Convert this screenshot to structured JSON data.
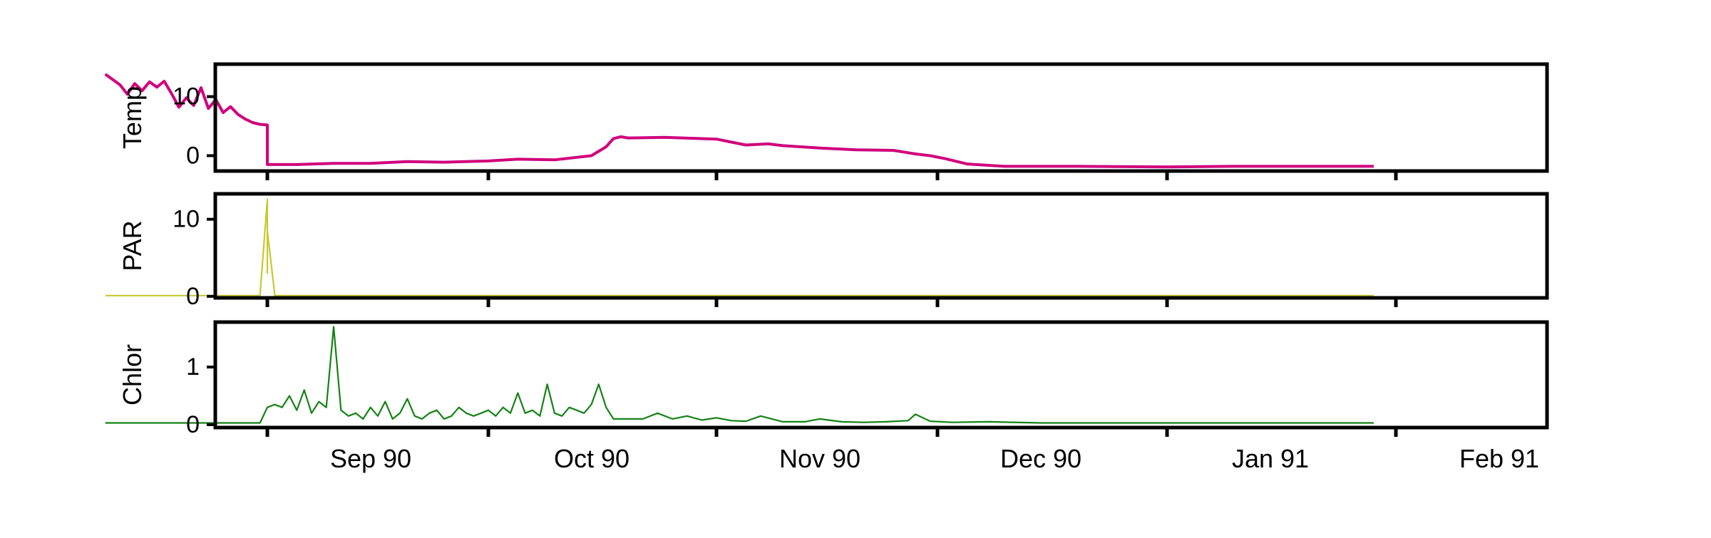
{
  "chart_data": [
    {
      "type": "line",
      "ylabel": "Temp",
      "color": "#d9006c",
      "edge_color": "#c20094",
      "y_ticks": [
        0,
        10
      ],
      "ylim": [
        -2.6,
        15.5
      ],
      "xlim": [
        "1990-08-01",
        "1991-02-04"
      ],
      "grid": false,
      "series": [
        {
          "x": [
            "1990-08-10",
            "1990-08-12",
            "1990-08-13",
            "1990-08-14",
            "1990-08-15",
            "1990-08-16",
            "1990-08-17",
            "1990-08-18",
            "1990-08-19",
            "1990-08-20",
            "1990-08-21",
            "1990-08-22",
            "1990-08-23",
            "1990-08-24",
            "1990-08-25",
            "1990-08-26",
            "1990-08-27",
            "1990-08-28",
            "1990-08-29",
            "1990-08-30",
            "1990-08-31",
            "1990-09-01",
            "1990-09-01",
            "1990-09-05",
            "1990-09-10",
            "1990-09-15",
            "1990-09-20",
            "1990-09-25",
            "1990-10-01",
            "1990-10-05",
            "1990-10-10",
            "1990-10-15",
            "1990-10-17",
            "1990-10-18",
            "1990-10-19",
            "1990-10-20",
            "1990-10-25",
            "1990-11-01",
            "1990-11-05",
            "1990-11-08",
            "1990-11-10",
            "1990-11-15",
            "1990-11-20",
            "1990-11-25",
            "1990-11-28",
            "1990-11-30",
            "1990-12-02",
            "1990-12-05",
            "1990-12-10",
            "1990-12-20",
            "1991-01-01",
            "1991-01-10",
            "1991-01-20",
            "1991-01-29"
          ],
          "y": [
            13.8,
            12.0,
            10.4,
            12.2,
            11.0,
            12.5,
            11.6,
            12.6,
            10.5,
            8.2,
            9.8,
            8.5,
            11.5,
            8.0,
            9.5,
            7.3,
            8.3,
            7.0,
            6.2,
            5.6,
            5.3,
            5.2,
            -1.5,
            -1.5,
            -1.3,
            -1.3,
            -1.0,
            -1.1,
            -0.9,
            -0.6,
            -0.7,
            0.0,
            1.5,
            2.9,
            3.2,
            3.0,
            3.1,
            2.8,
            1.8,
            2.0,
            1.7,
            1.3,
            1.0,
            0.9,
            0.3,
            0.0,
            -0.5,
            -1.4,
            -1.8,
            -1.8,
            -1.9,
            -1.8,
            -1.8,
            -1.8
          ]
        }
      ]
    },
    {
      "type": "line",
      "ylabel": "PAR",
      "color": "#c8c832",
      "y_ticks": [
        0,
        10
      ],
      "ylim": [
        -0.2,
        13.3
      ],
      "xlim": [
        "1990-08-01",
        "1991-02-04"
      ],
      "grid": false,
      "series": [
        {
          "x": [
            "1990-08-10",
            "1990-08-20",
            "1990-08-31",
            "1990-09-01",
            "1990-09-01",
            "1990-09-01",
            "1990-09-02",
            "1990-09-02",
            "1990-09-03",
            "1990-09-10",
            "1990-10-01",
            "1990-11-01",
            "1990-12-01",
            "1991-01-01",
            "1991-01-29"
          ],
          "y": [
            0.1,
            0.1,
            0.1,
            12.6,
            3.0,
            8.5,
            0.3,
            0.1,
            0.1,
            0.1,
            0.1,
            0.1,
            0.1,
            0.1,
            0.1
          ]
        }
      ]
    },
    {
      "type": "line",
      "ylabel": "Chlor",
      "color": "#148214",
      "y_ticks": [
        0,
        1
      ],
      "ylim": [
        -0.05,
        1.78
      ],
      "xlim": [
        "1990-08-01",
        "1991-02-04"
      ],
      "grid": false,
      "series": [
        {
          "x": [
            "1990-08-10",
            "1990-08-20",
            "1990-08-31",
            "1990-09-01",
            "1990-09-02",
            "1990-09-03",
            "1990-09-04",
            "1990-09-05",
            "1990-09-06",
            "1990-09-07",
            "1990-09-08",
            "1990-09-09",
            "1990-09-10",
            "1990-09-11",
            "1990-09-12",
            "1990-09-13",
            "1990-09-14",
            "1990-09-15",
            "1990-09-16",
            "1990-09-17",
            "1990-09-18",
            "1990-09-19",
            "1990-09-20",
            "1990-09-21",
            "1990-09-22",
            "1990-09-23",
            "1990-09-24",
            "1990-09-25",
            "1990-09-26",
            "1990-09-27",
            "1990-09-28",
            "1990-09-29",
            "1990-09-30",
            "1990-10-01",
            "1990-10-02",
            "1990-10-03",
            "1990-10-04",
            "1990-10-05",
            "1990-10-06",
            "1990-10-07",
            "1990-10-08",
            "1990-10-09",
            "1990-10-10",
            "1990-10-11",
            "1990-10-12",
            "1990-10-13",
            "1990-10-14",
            "1990-10-15",
            "1990-10-16",
            "1990-10-17",
            "1990-10-18",
            "1990-10-20",
            "1990-10-22",
            "1990-10-24",
            "1990-10-26",
            "1990-10-28",
            "1990-10-30",
            "1990-11-01",
            "1990-11-03",
            "1990-11-05",
            "1990-11-07",
            "1990-11-10",
            "1990-11-13",
            "1990-11-15",
            "1990-11-18",
            "1990-11-21",
            "1990-11-24",
            "1990-11-27",
            "1990-11-28",
            "1990-11-30",
            "1990-12-03",
            "1990-12-08",
            "1990-12-15",
            "1990-12-25",
            "1991-01-05",
            "1991-01-12",
            "1991-01-20",
            "1991-01-25",
            "1991-01-29"
          ],
          "y": [
            0.03,
            0.03,
            0.03,
            0.3,
            0.35,
            0.3,
            0.5,
            0.25,
            0.6,
            0.2,
            0.4,
            0.3,
            1.7,
            0.25,
            0.15,
            0.2,
            0.1,
            0.3,
            0.15,
            0.4,
            0.1,
            0.2,
            0.45,
            0.15,
            0.1,
            0.2,
            0.25,
            0.1,
            0.15,
            0.3,
            0.2,
            0.15,
            0.2,
            0.25,
            0.15,
            0.3,
            0.2,
            0.55,
            0.2,
            0.25,
            0.15,
            0.7,
            0.2,
            0.15,
            0.3,
            0.25,
            0.2,
            0.35,
            0.7,
            0.3,
            0.1,
            0.1,
            0.1,
            0.2,
            0.1,
            0.15,
            0.08,
            0.12,
            0.07,
            0.06,
            0.15,
            0.05,
            0.05,
            0.1,
            0.05,
            0.04,
            0.05,
            0.07,
            0.18,
            0.06,
            0.04,
            0.05,
            0.03,
            0.03,
            0.03,
            0.03,
            0.03,
            0.03,
            0.03
          ]
        }
      ]
    }
  ],
  "x_axis": {
    "tick_labels": [
      "Sep 90",
      "Oct 90",
      "Nov 90",
      "Dec 90",
      "Jan 91",
      "Feb 91"
    ]
  }
}
